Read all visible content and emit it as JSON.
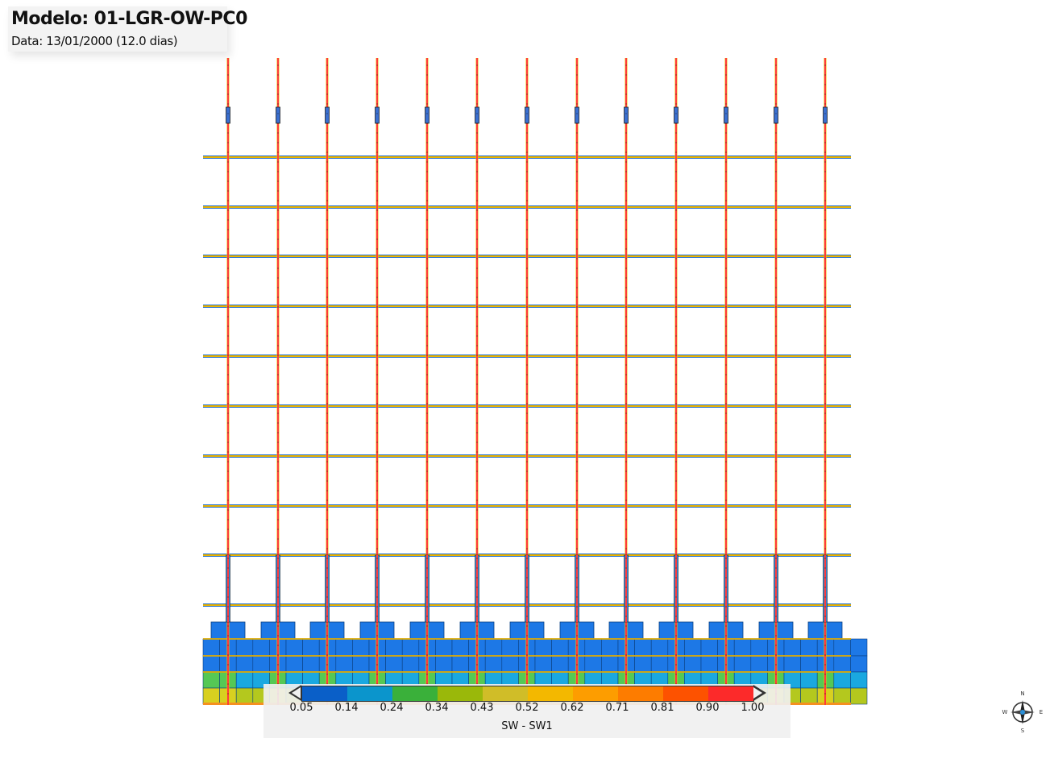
{
  "header": {
    "title": "Modelo: 01-LGR-OW-PC0",
    "subtitle": "Data: 13/01/2000 (12.0 dias)"
  },
  "legend": {
    "ticks": [
      "0.05",
      "0.14",
      "0.24",
      "0.34",
      "0.43",
      "0.52",
      "0.62",
      "0.71",
      "0.81",
      "0.90",
      "1.00"
    ],
    "label": "SW - SW1",
    "colors": [
      "#0a5fc8",
      "#0b95cc",
      "#3ab03a",
      "#9ab80a",
      "#d0bd28",
      "#f3b800",
      "#fd9d00",
      "#fd7c00",
      "#fd5200",
      "#fc2a2a"
    ]
  },
  "grid": {
    "well_colors": {
      "fracture": "#ff3a3a",
      "fracture_edge": "#e8c800",
      "horizontal_main": "#ecb300",
      "horizontal_edge": "#1e6fd0",
      "bottom_blue": "#1d78e6",
      "bottom_cyan": "#1aa8e0",
      "bottom_green": "#55c855",
      "bottom_yellow": "#b4c81e"
    }
  },
  "compass": {
    "icon": "compass-rose-icon",
    "labels": [
      "N",
      "E",
      "S",
      "W"
    ]
  }
}
